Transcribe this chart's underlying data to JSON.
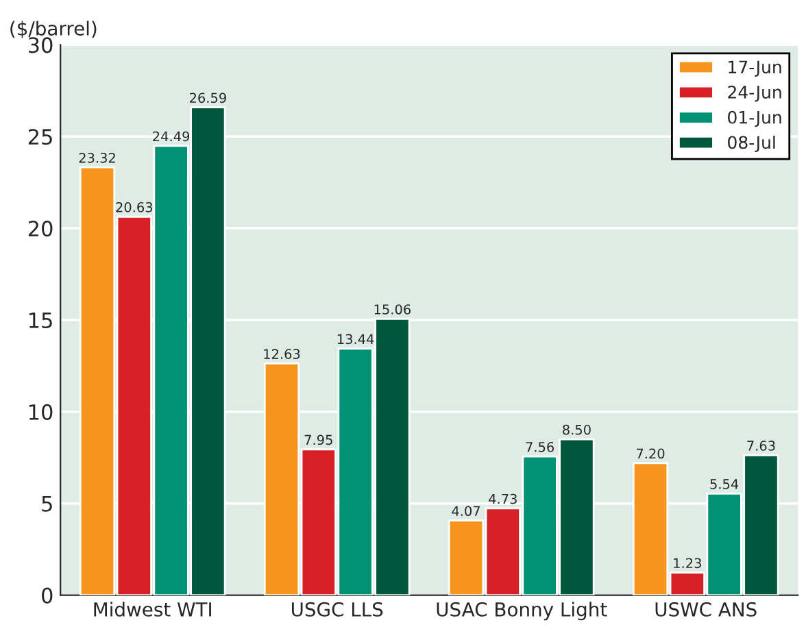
{
  "chart_data": {
    "type": "bar",
    "ylabel": "($/barrel)",
    "categories": [
      "Midwest WTI",
      "USGC LLS",
      "USAC Bonny Light",
      "USWC ANS"
    ],
    "series": [
      {
        "name": "17-Jun",
        "color": "#f7941d",
        "values": [
          23.32,
          12.63,
          4.07,
          7.2
        ],
        "value_labels": [
          "23.32",
          "12.63",
          "4.07",
          "7.20"
        ]
      },
      {
        "name": "24-Jun",
        "color": "#d71f26",
        "values": [
          20.63,
          7.95,
          4.73,
          1.23
        ],
        "value_labels": [
          "20.63",
          "7.95",
          "4.73",
          "1.23"
        ]
      },
      {
        "name": "01-Jun",
        "color": "#009273",
        "values": [
          24.49,
          13.44,
          7.56,
          5.54
        ],
        "value_labels": [
          "24.49",
          "13.44",
          "7.56",
          "5.54"
        ]
      },
      {
        "name": "08-Jul",
        "color": "#00573c",
        "values": [
          26.59,
          15.06,
          8.5,
          7.63
        ],
        "value_labels": [
          "26.59",
          "15.06",
          "8.50",
          "7.63"
        ]
      }
    ],
    "ylim": [
      0,
      30
    ],
    "yticks": [
      0,
      5,
      10,
      15,
      20,
      25,
      30
    ],
    "grid": "y",
    "legend": "top right"
  }
}
